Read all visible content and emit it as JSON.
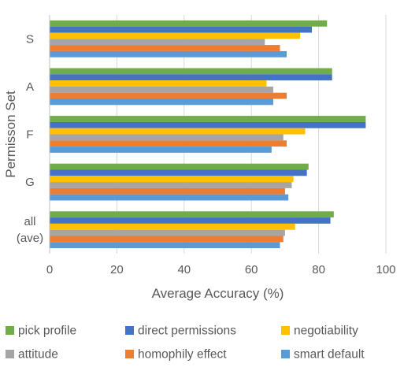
{
  "chart_data": {
    "type": "bar",
    "orientation": "horizontal",
    "categories": [
      "S",
      "A",
      "F",
      "G",
      "all\n(ave)"
    ],
    "xlabel": "Average Accuracy (%)",
    "ylabel": "Permisson Set",
    "xlim": [
      0,
      100
    ],
    "xticks": [
      0,
      20,
      40,
      60,
      80,
      100
    ],
    "grid": "vertical",
    "legend_position": "bottom",
    "series": [
      {
        "name": "pick profile",
        "color": "#70AD47",
        "values": [
          82.5,
          84.0,
          94.0,
          77.0,
          84.5
        ]
      },
      {
        "name": "direct permissions",
        "color": "#4472C4",
        "values": [
          78.0,
          84.0,
          94.0,
          76.5,
          83.5
        ]
      },
      {
        "name": "negotiability",
        "color": "#FFC000",
        "values": [
          74.5,
          64.5,
          76.0,
          72.5,
          73.0
        ]
      },
      {
        "name": "attitude",
        "color": "#A5A5A5",
        "values": [
          64.0,
          66.5,
          69.5,
          72.0,
          70.0
        ]
      },
      {
        "name": "homophily effect",
        "color": "#ED7D31",
        "values": [
          68.5,
          70.5,
          70.5,
          70.0,
          69.5
        ]
      },
      {
        "name": "smart default",
        "color": "#5B9BD5",
        "values": [
          70.5,
          66.5,
          66.0,
          71.0,
          68.5
        ]
      }
    ]
  }
}
